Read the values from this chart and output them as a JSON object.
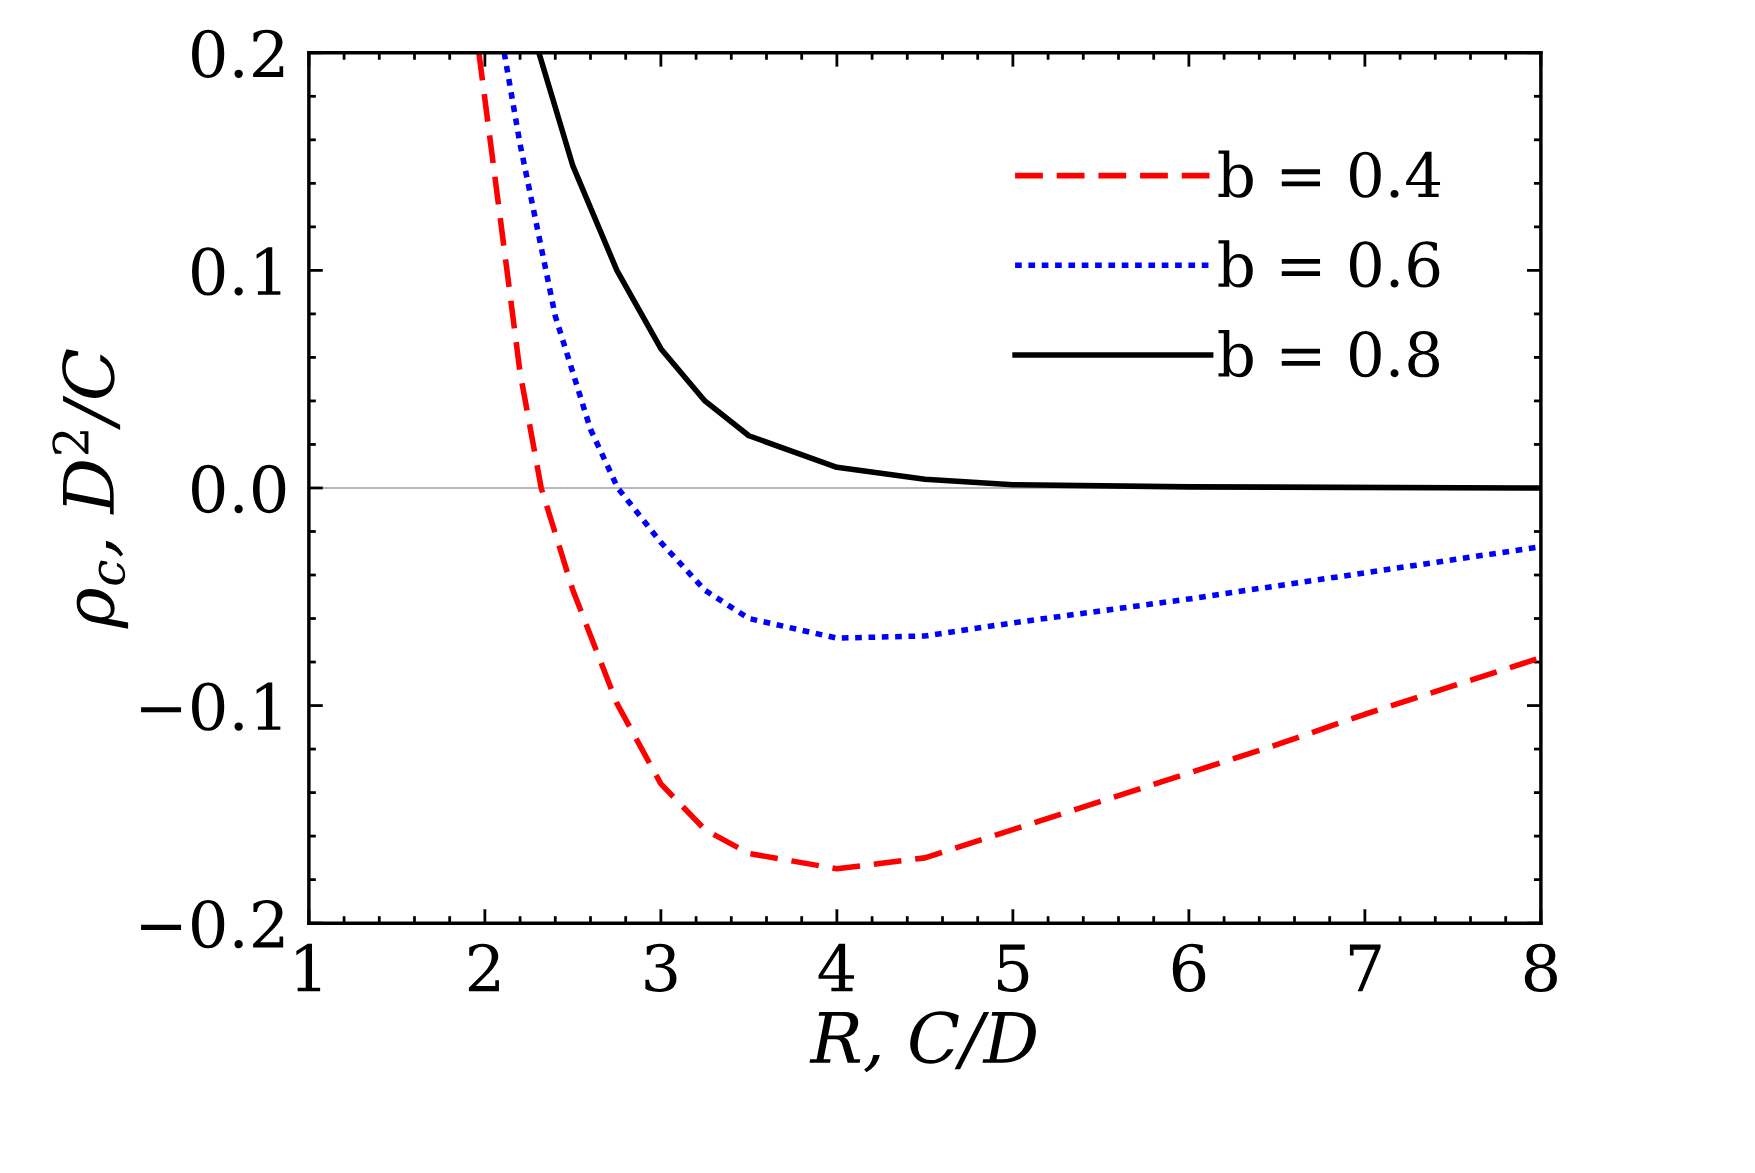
{
  "chart_data": {
    "type": "line",
    "xlabel": "R, C/D",
    "ylabel": "ρ$_{c}$, D$^{2}$/C",
    "xlim": [
      1,
      8
    ],
    "ylim": [
      -0.2,
      0.2
    ],
    "xticks": [
      1,
      2,
      3,
      4,
      5,
      6,
      7,
      8
    ],
    "yticks": [
      {
        "value": -0.2,
        "label": "−0.2"
      },
      {
        "value": -0.1,
        "label": "−0.1"
      },
      {
        "value": 0.0,
        "label": "0.0"
      },
      {
        "value": 0.1,
        "label": "0.1"
      },
      {
        "value": 0.2,
        "label": "0.2"
      }
    ],
    "grid": false,
    "legend": "top right",
    "ref_lines": [
      {
        "axis": "y",
        "value": 0,
        "color": "#a0a0a0",
        "line_style": "solid"
      }
    ],
    "series": [
      {
        "name": "b = 0.4",
        "color": "#ff0000",
        "line_style": "dashed",
        "x": [
          1.966,
          2.1,
          2.2,
          2.32,
          2.5,
          2.75,
          3.0,
          3.25,
          3.5,
          4.0,
          4.5,
          5.0,
          5.5,
          6.0,
          6.5,
          7.0,
          7.5,
          8.0
        ],
        "values": [
          0.2,
          0.116,
          0.053,
          0.0,
          -0.047,
          -0.099,
          -0.136,
          -0.157,
          -0.168,
          -0.175,
          -0.17,
          -0.157,
          -0.144,
          -0.131,
          -0.118,
          -0.104,
          -0.091,
          -0.078
        ]
      },
      {
        "name": "b = 0.6",
        "color": "#0000ff",
        "line_style": "dotted",
        "x": [
          2.11,
          2.2,
          2.4,
          2.6,
          2.755,
          3.0,
          3.25,
          3.5,
          4.0,
          4.5,
          5.0,
          6.0,
          7.0,
          8.0
        ],
        "values": [
          0.2,
          0.158,
          0.079,
          0.027,
          0.0,
          -0.025,
          -0.047,
          -0.06,
          -0.069,
          -0.068,
          -0.062,
          -0.051,
          -0.039,
          -0.027
        ]
      },
      {
        "name": "b = 0.8",
        "color": "#000000",
        "line_style": "solid",
        "x": [
          2.307,
          2.5,
          2.75,
          3.0,
          3.25,
          3.5,
          4.0,
          4.5,
          5.0,
          6.0,
          8.0
        ],
        "values": [
          0.2,
          0.148,
          0.1,
          0.064,
          0.04,
          0.024,
          0.0095,
          0.004,
          0.0015,
          0.0005,
          0.0
        ]
      }
    ]
  }
}
